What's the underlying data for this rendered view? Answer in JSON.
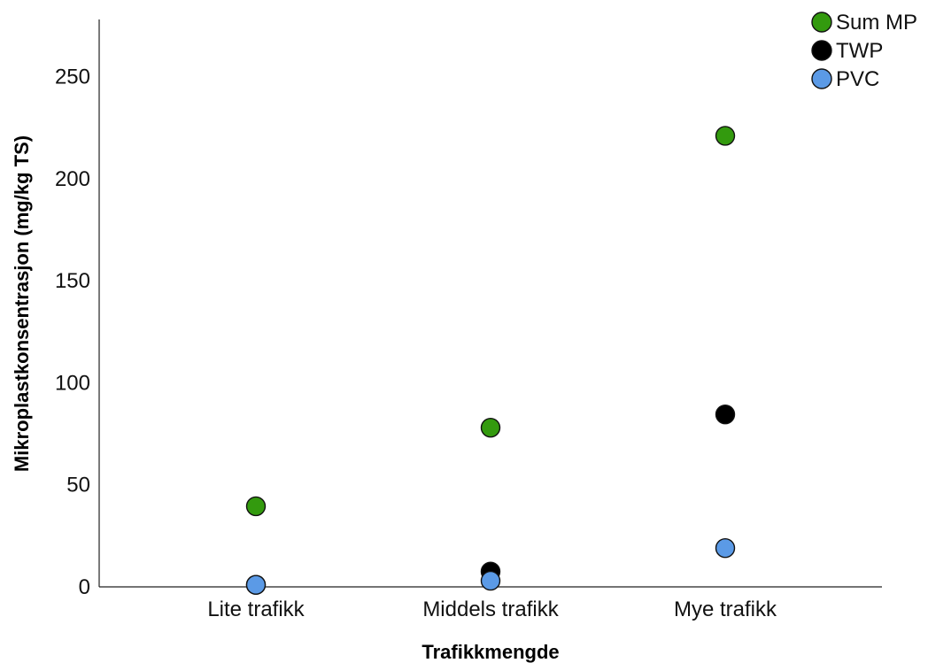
{
  "chart_data": {
    "type": "scatter",
    "xlabel": "Trafikkmengde",
    "ylabel": "Mikroplastkonsentrasjon (mg/kg TS)",
    "categories": [
      "Lite trafikk",
      "Middels trafikk",
      "Mye trafikk"
    ],
    "ylim": [
      0,
      278
    ],
    "yticks": [
      0,
      50,
      100,
      150,
      200,
      250
    ],
    "grid": false,
    "legend_position": "top-right",
    "series": [
      {
        "name": "Sum MP",
        "color": "#339a0e",
        "values": [
          39.5,
          78,
          221
        ]
      },
      {
        "name": "TWP",
        "color": "#000000",
        "values": [
          1,
          7.5,
          84.5
        ]
      },
      {
        "name": "PVC",
        "color": "#5b9ae6",
        "values": [
          1,
          3,
          19
        ]
      }
    ]
  }
}
